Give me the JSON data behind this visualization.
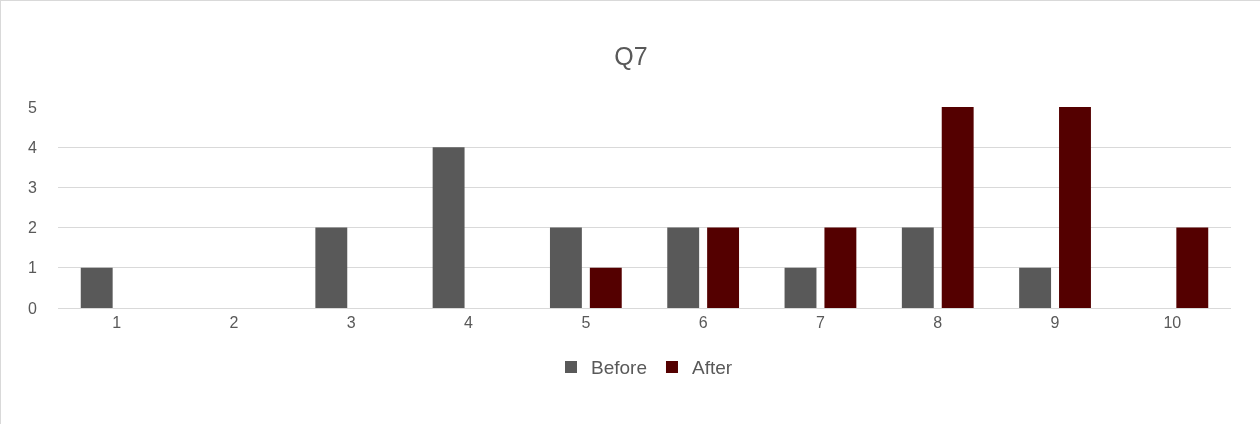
{
  "chart_data": {
    "type": "bar",
    "title": "Q7",
    "categories": [
      "1",
      "2",
      "3",
      "4",
      "5",
      "6",
      "7",
      "8",
      "9",
      "10"
    ],
    "series": [
      {
        "name": "Before",
        "color": "#595959",
        "values": [
          1,
          0,
          2,
          4,
          2,
          2,
          1,
          2,
          1,
          0
        ]
      },
      {
        "name": "After",
        "color": "#540000",
        "values": [
          0,
          0,
          0,
          0,
          1,
          2,
          2,
          5,
          5,
          2
        ]
      }
    ],
    "ylim": [
      0,
      5
    ],
    "yticks": [
      0,
      1,
      2,
      3,
      4,
      5
    ],
    "grid": "y",
    "legend": "bottom"
  }
}
